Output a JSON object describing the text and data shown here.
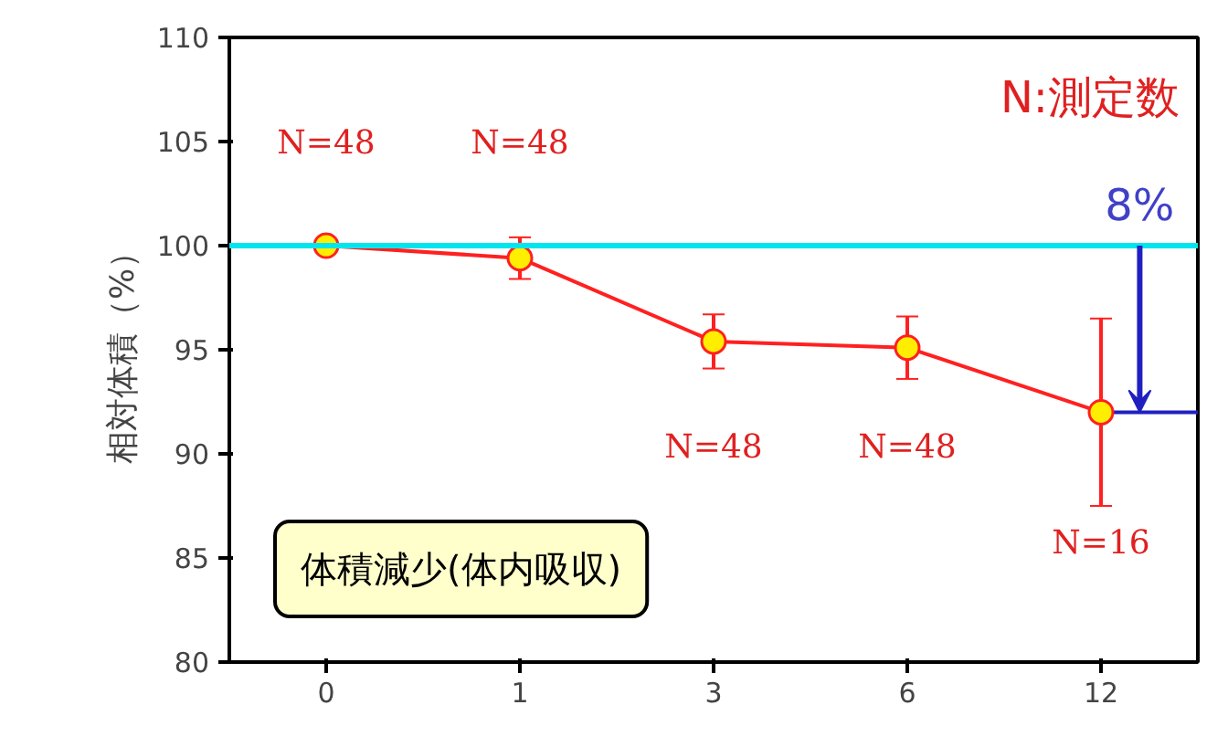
{
  "chart_data": {
    "type": "line",
    "ylabel": "相対体積（%）",
    "categories": [
      "0",
      "1",
      "3",
      "6",
      "12"
    ],
    "series": [
      {
        "color": "#ff2020",
        "values": [
          100,
          99.4,
          95.4,
          95.1,
          92.0
        ],
        "errors": [
          null,
          1.0,
          1.3,
          1.5,
          4.5
        ]
      }
    ],
    "ylim": [
      80,
      110
    ],
    "yticks": [
      80,
      85,
      90,
      95,
      100,
      105,
      110
    ],
    "grid": false,
    "marker": "circle",
    "line_style": "solid",
    "ref_lines": [
      {
        "axis": "y",
        "value": 100,
        "color": "#00e5ee"
      },
      {
        "axis": "y",
        "value": 92.0,
        "color": "#2020c0"
      }
    ],
    "annotations": [
      "N=48",
      "N=48",
      "N=48",
      "N=48",
      "N=16",
      {
        "text": "8%",
        "x": "12",
        "y": 100
      },
      "N:測定数",
      "体積減少(体内吸収)"
    ]
  }
}
